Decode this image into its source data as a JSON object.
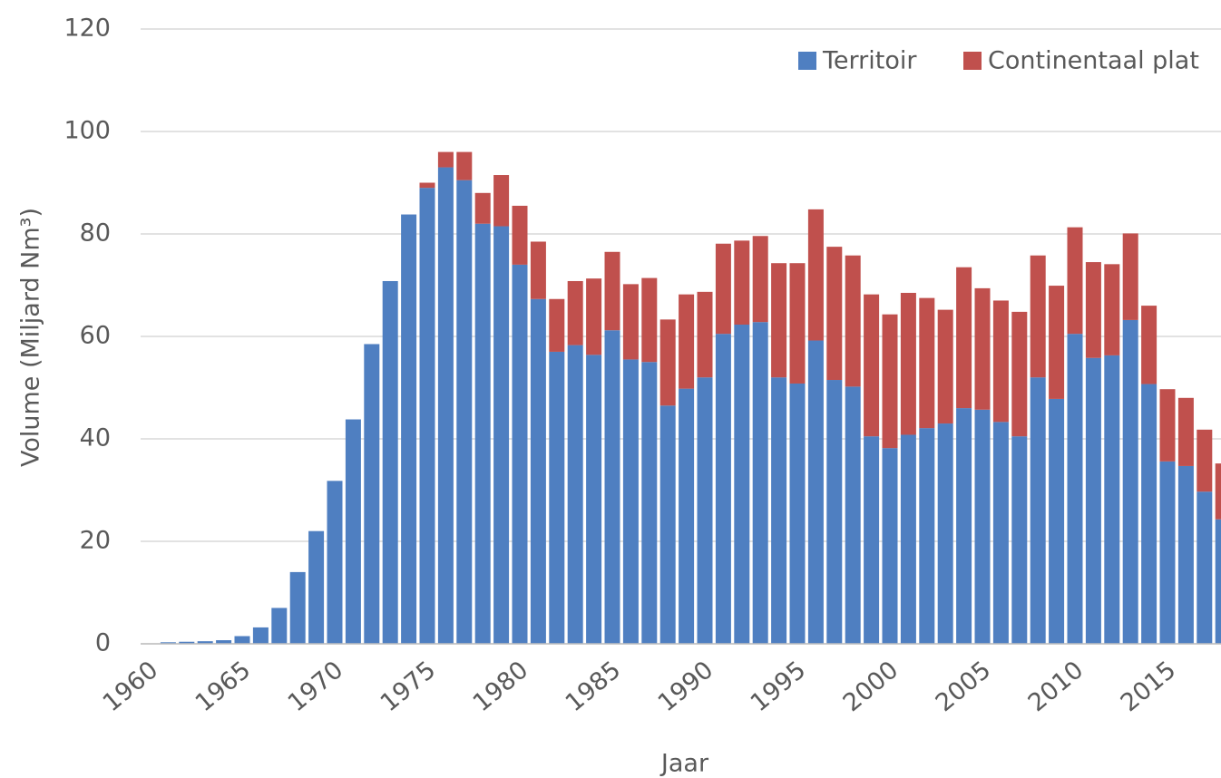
{
  "chart_data": {
    "type": "stacked_bar",
    "y_label": "Volume (Miljard Nm³)",
    "x_label": "Jaar",
    "categories": [
      "1960",
      null,
      null,
      null,
      null,
      "1965",
      null,
      null,
      null,
      null,
      "1970",
      null,
      null,
      null,
      null,
      "1975",
      null,
      null,
      null,
      null,
      "1980",
      null,
      null,
      null,
      null,
      "1985",
      null,
      null,
      null,
      null,
      "1990",
      null,
      null,
      null,
      null,
      "1995",
      null,
      null,
      null,
      null,
      "2000",
      null,
      null,
      null,
      null,
      "2005",
      null,
      null,
      null,
      null,
      "2010",
      null,
      null,
      null,
      null,
      "2015",
      null,
      null,
      null
    ],
    "series": [
      {
        "name": "Territoir",
        "color": "#4f7fc1",
        "values": [
          0,
          0.3,
          0.4,
          0.5,
          0.7,
          1.5,
          3.2,
          7,
          14,
          22,
          31.8,
          43.8,
          58.5,
          70.8,
          83.8,
          89,
          93,
          90.5,
          82,
          81.5,
          74,
          67.3,
          57,
          58.3,
          56.4,
          61.2,
          55.5,
          55,
          46.5,
          49.8,
          52,
          60.5,
          62.3,
          62.8,
          52,
          50.8,
          59.2,
          51.5,
          50.2,
          40.5,
          38.2,
          40.8,
          42.1,
          43,
          46,
          45.7,
          43.3,
          40.5,
          52,
          47.8,
          60.5,
          55.8,
          56.3,
          63.2,
          50.7,
          35.6,
          34.7,
          29.7,
          24.3
        ]
      },
      {
        "name": "Continentaal plat",
        "color": "#c0504d",
        "values": [
          0,
          0,
          0,
          0,
          0,
          0,
          0,
          0,
          0,
          0,
          0,
          0,
          0,
          0,
          0,
          1,
          3,
          5.5,
          6,
          10,
          11.5,
          11.2,
          10.3,
          12.5,
          14.9,
          15.3,
          14.7,
          16.4,
          16.8,
          18.4,
          16.7,
          17.6,
          16.4,
          16.8,
          22.3,
          23.5,
          25.6,
          26,
          25.6,
          27.7,
          26.1,
          27.7,
          25.4,
          22.2,
          27.5,
          23.7,
          23.7,
          24.3,
          23.8,
          22.1,
          20.8,
          18.7,
          17.8,
          16.9,
          15.3,
          14.1,
          13.3,
          12.1,
          10.9
        ]
      }
    ],
    "ylim": [
      0,
      120
    ],
    "yticks": [
      0,
      20,
      40,
      60,
      80,
      100,
      120
    ],
    "grid": true,
    "legend": "upper right"
  }
}
